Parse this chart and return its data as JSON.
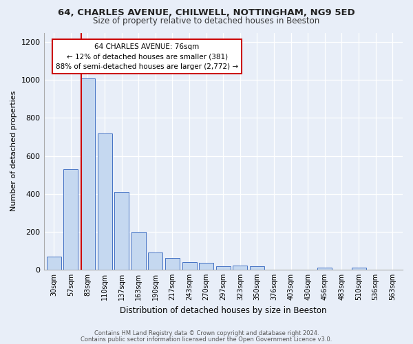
{
  "title1": "64, CHARLES AVENUE, CHILWELL, NOTTINGHAM, NG9 5ED",
  "title2": "Size of property relative to detached houses in Beeston",
  "xlabel": "Distribution of detached houses by size in Beeston",
  "ylabel": "Number of detached properties",
  "categories": [
    "30sqm",
    "57sqm",
    "83sqm",
    "110sqm",
    "137sqm",
    "163sqm",
    "190sqm",
    "217sqm",
    "243sqm",
    "270sqm",
    "297sqm",
    "323sqm",
    "350sqm",
    "376sqm",
    "403sqm",
    "430sqm",
    "456sqm",
    "483sqm",
    "510sqm",
    "536sqm",
    "563sqm"
  ],
  "values": [
    70,
    530,
    1010,
    720,
    410,
    200,
    90,
    60,
    40,
    35,
    18,
    22,
    18,
    0,
    0,
    0,
    12,
    0,
    10,
    0,
    0
  ],
  "bar_color": "#c5d8f0",
  "bar_edge_color": "#4472c4",
  "vline_color": "#cc0000",
  "vline_pos": 1.62,
  "annotation_title": "64 CHARLES AVENUE: 76sqm",
  "annotation_line2": "← 12% of detached houses are smaller (381)",
  "annotation_line3": "88% of semi-detached houses are larger (2,772) →",
  "annotation_box_color": "#ffffff",
  "annotation_box_edge": "#cc0000",
  "ylim": [
    0,
    1250
  ],
  "yticks": [
    0,
    200,
    400,
    600,
    800,
    1000,
    1200
  ],
  "footer1": "Contains HM Land Registry data © Crown copyright and database right 2024.",
  "footer2": "Contains public sector information licensed under the Open Government Licence v3.0.",
  "bg_color": "#e8eef8",
  "plot_bg_color": "#e8eef8",
  "title1_fontsize": 9.5,
  "title2_fontsize": 8.5
}
